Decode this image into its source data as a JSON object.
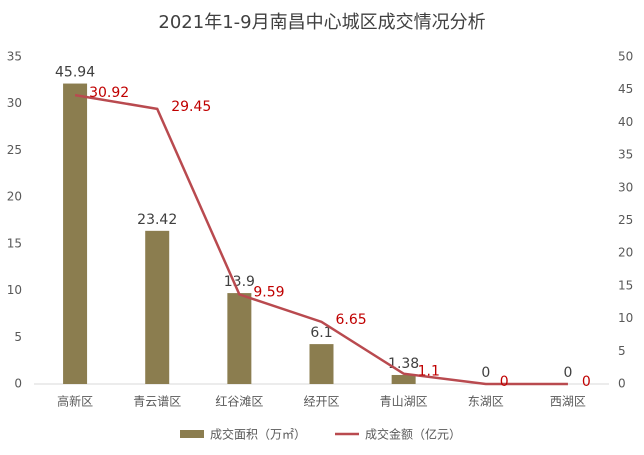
{
  "chart_data": {
    "type": "bar-line",
    "title": "2021年1-9月南昌中心城区成交情况分析",
    "categories": [
      "高新区",
      "青云谱区",
      "红谷滩区",
      "经开区",
      "青山湖区",
      "东湖区",
      "西湖区"
    ],
    "series": [
      {
        "name": "成交面积（万㎡）",
        "type": "bar",
        "color": "#8b7d4f",
        "axis": "y2",
        "values": [
          45.94,
          23.42,
          13.9,
          6.1,
          1.38,
          0,
          0
        ]
      },
      {
        "name": "成交金额（亿元）",
        "type": "line",
        "color": "#b94a4f",
        "axis": "y",
        "values": [
          30.92,
          29.45,
          9.59,
          6.65,
          1.1,
          0,
          0
        ]
      }
    ],
    "ylim": [
      0,
      35
    ],
    "yticks": [
      0,
      5,
      10,
      15,
      20,
      25,
      30,
      35
    ],
    "y2lim": [
      0,
      50
    ],
    "y2ticks": [
      0,
      5,
      10,
      15,
      20,
      25,
      30,
      35,
      40,
      45,
      50
    ],
    "legend": "bottom"
  }
}
